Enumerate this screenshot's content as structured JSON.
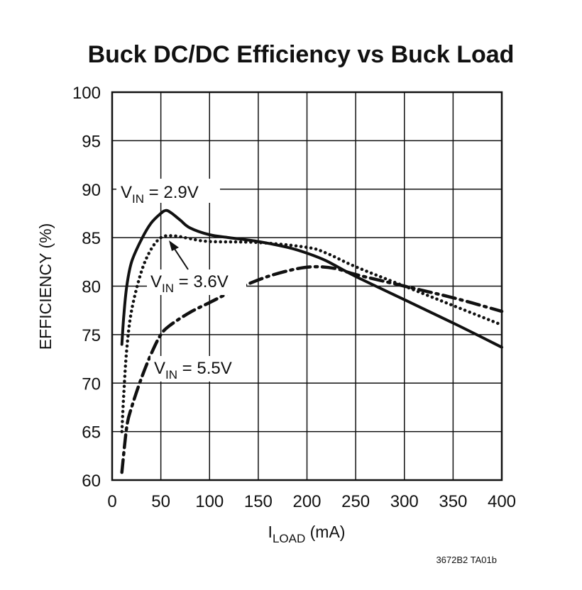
{
  "chart_data": {
    "type": "line",
    "title": "Buck DC/DC Efficiency vs Buck Load",
    "xlabel": {
      "main": "I",
      "sub": "LOAD",
      "unit": " (mA)"
    },
    "ylabel": "EFFICIENCY (%)",
    "xlim": [
      0,
      400
    ],
    "ylim": [
      60,
      100
    ],
    "xticks": [
      0,
      50,
      100,
      150,
      200,
      250,
      300,
      350,
      400
    ],
    "yticks": [
      60,
      65,
      70,
      75,
      80,
      85,
      90,
      95,
      100
    ],
    "grid": true,
    "series": [
      {
        "name": "VIN = 2.9V",
        "label": {
          "main": "V",
          "sub": "IN",
          "rest": " = 2.9V"
        },
        "style": "solid",
        "x": [
          10,
          12,
          15,
          20,
          30,
          40,
          50,
          55,
          60,
          70,
          80,
          100,
          120,
          150,
          180,
          200,
          220,
          250,
          300,
          350,
          400
        ],
        "y": [
          74,
          77,
          80,
          82.5,
          84.8,
          86.5,
          87.5,
          87.8,
          87.6,
          86.8,
          86,
          85.3,
          85,
          84.6,
          84,
          83.4,
          82.6,
          81,
          78.6,
          76.2,
          73.7
        ]
      },
      {
        "name": "VIN = 3.6V",
        "label": {
          "main": "V",
          "sub": "IN",
          "rest": " = 3.6V"
        },
        "style": "dotted",
        "x": [
          10,
          12,
          15,
          20,
          30,
          40,
          50,
          60,
          70,
          80,
          100,
          150,
          200,
          220,
          250,
          300,
          350,
          400
        ],
        "y": [
          65,
          69,
          73.5,
          77.5,
          81.5,
          83.8,
          85,
          85.2,
          85.1,
          84.9,
          84.6,
          84.5,
          84,
          83.4,
          82,
          80,
          78,
          76
        ]
      },
      {
        "name": "VIN = 5.5V",
        "label": {
          "main": "V",
          "sub": "IN",
          "rest": " = 5.5V"
        },
        "style": "dashdot",
        "x": [
          10,
          15,
          20,
          30,
          40,
          50,
          60,
          80,
          100,
          130,
          160,
          190,
          210,
          230,
          250,
          300,
          350,
          400
        ],
        "y": [
          60.8,
          65.5,
          67.5,
          70.5,
          73,
          75,
          76,
          77.3,
          78.3,
          79.8,
          81,
          81.8,
          82,
          81.8,
          81.2,
          80,
          78.8,
          77.4
        ]
      }
    ]
  },
  "footnote": "3672B2 TA01b"
}
